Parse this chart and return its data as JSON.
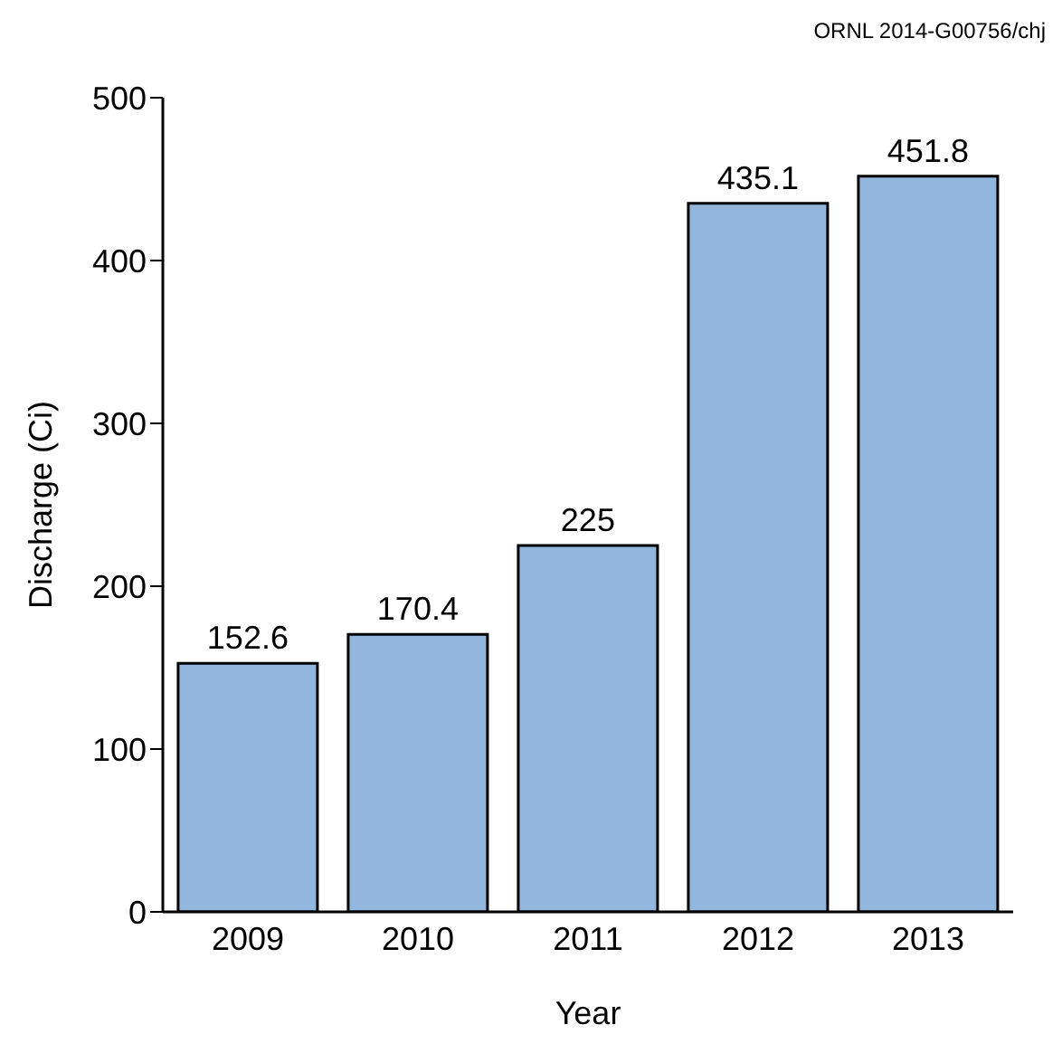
{
  "chart_data": {
    "type": "bar",
    "xlabel": "Year",
    "ylabel": "Discharge (Ci)",
    "categories": [
      "2009",
      "2010",
      "2011",
      "2012",
      "2013"
    ],
    "values": [
      152.6,
      170.4,
      225,
      435.1,
      451.8
    ],
    "color": "#92b6de",
    "ylim": [
      0,
      500
    ],
    "yticks": [
      0,
      100,
      200,
      300,
      400,
      500
    ],
    "grid": false,
    "data_labels": true,
    "annotations": [
      "ORNL 2014-G00756/chj"
    ]
  }
}
